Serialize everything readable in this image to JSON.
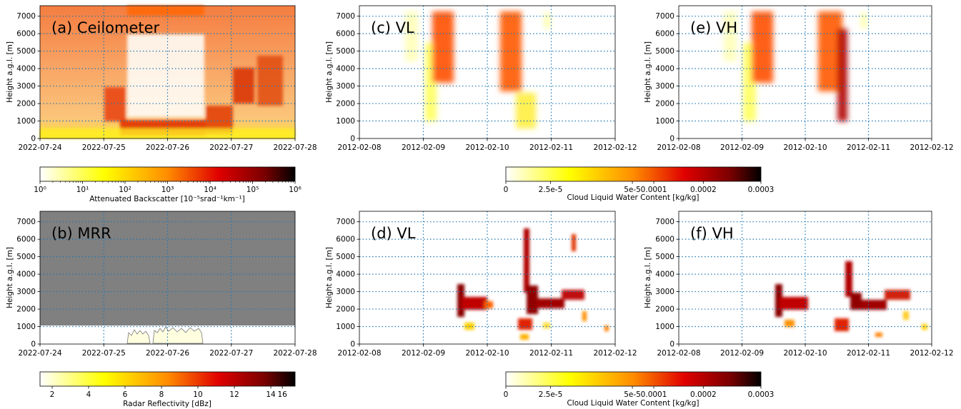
{
  "figure": {
    "colorbar_top_left": {
      "label": "Attenuated Backscatter [10⁻⁵srad⁻¹km⁻¹]",
      "ticks": [
        "10⁰",
        "10¹",
        "10²",
        "10³",
        "10⁴",
        "10⁵",
        "10⁶"
      ],
      "colors": [
        "#ffffff",
        "#ffff00",
        "#ff8c00",
        "#e00000",
        "#7a0000",
        "#000000"
      ]
    },
    "colorbar_top_right": {
      "label": "Cloud Liquid Water Content [kg/kg]",
      "ticks": [
        "0",
        "2.5e-5",
        "5e-5",
        "0.0001",
        "0.0002",
        "0.0003"
      ],
      "colors": [
        "#ffffff",
        "#ffff00",
        "#ff8c00",
        "#e00000",
        "#7a0000",
        "#000000"
      ]
    },
    "colorbar_bottom_left": {
      "label": "Radar Reflectivity [dBz]",
      "ticks": [
        "2",
        "4",
        "6",
        "8",
        "10",
        "12",
        "14",
        "16"
      ],
      "colors": [
        "#ffffff",
        "#ffff00",
        "#ff8c00",
        "#e00000",
        "#7a0000",
        "#000000"
      ]
    },
    "colorbar_bottom_right": {
      "label": "Cloud Liquid Water Content [kg/kg]",
      "ticks": [
        "0",
        "2.5e-5",
        "5e-5",
        "0.0001",
        "0.0002",
        "0.0003"
      ],
      "colors": [
        "#ffffff",
        "#ffff00",
        "#ff8c00",
        "#e00000",
        "#7a0000",
        "#000000"
      ]
    }
  },
  "chart_data": [
    {
      "type": "heatmap",
      "title": "(a) Ceilometer",
      "ylabel": "Height a.g.l. [m]",
      "xlabel": "",
      "x_ticks": [
        "2022-07-24",
        "2022-07-25",
        "2022-07-26",
        "2022-07-27",
        "2022-07-28"
      ],
      "y_ticks": [
        "0",
        "1000",
        "2000",
        "3000",
        "4000",
        "5000",
        "6000",
        "7000"
      ],
      "xlim": [
        "2022-07-24",
        "2022-07-28"
      ],
      "ylim": [
        0,
        7600
      ],
      "grid": true,
      "background": "#f58a45",
      "features": [
        {
          "from": "2022-07-24",
          "to": "2022-07-28",
          "bottom": 0,
          "top": 600,
          "value": "yellow"
        },
        {
          "from": "2022-07-25.4",
          "to": "2022-07-26.6",
          "bottom": 1000,
          "top": 6000,
          "value": "white"
        },
        {
          "from": "2022-07-25.4",
          "to": "2022-07-26.6",
          "bottom": 7200,
          "top": 7600,
          "value": "red"
        },
        {
          "from": "2022-07-25.0",
          "to": "2022-07-25.3",
          "bottom": 900,
          "top": 3000,
          "value": "red"
        },
        {
          "from": "2022-07-25.3",
          "to": "2022-07-26.6",
          "bottom": 200,
          "top": 1200,
          "value": "red"
        },
        {
          "from": "2022-07-26.6",
          "to": "2022-07-27.0",
          "bottom": 200,
          "top": 2000,
          "value": "red"
        },
        {
          "from": "2022-07-27.0",
          "to": "2022-07-27.4",
          "bottom": 2200,
          "top": 4200,
          "value": "red"
        },
        {
          "from": "2022-07-27.4",
          "to": "2022-07-27.8",
          "bottom": 2000,
          "top": 4800,
          "value": "red"
        }
      ]
    },
    {
      "type": "heatmap",
      "title": "(b) MRR",
      "ylabel": "Height a.g.l. [m]",
      "xlabel": "",
      "x_ticks": [
        "2022-07-24",
        "2022-07-25",
        "2022-07-26",
        "2022-07-27",
        "2022-07-28"
      ],
      "y_ticks": [
        "0",
        "1000",
        "2000",
        "3000",
        "4000",
        "5000",
        "6000",
        "7000"
      ],
      "xlim": [
        "2022-07-24",
        "2022-07-28"
      ],
      "ylim": [
        0,
        7600
      ],
      "grid": true,
      "masked_above": 1050,
      "masked_color": "#808080",
      "features": [
        {
          "from": "2022-07-25.35",
          "to": "2022-07-25.6",
          "bottom": 0,
          "top": 800,
          "value": "light-yellow"
        },
        {
          "from": "2022-07-25.8",
          "to": "2022-07-26.55",
          "bottom": 0,
          "top": 900,
          "value": "light-yellow"
        }
      ]
    },
    {
      "type": "heatmap",
      "title": "(c) VL",
      "ylabel": "Height a.g.l. [m]",
      "xlabel": "",
      "x_ticks": [
        "2012-02-08",
        "2012-02-09",
        "2012-02-10",
        "2012-02-11",
        "2012-02-12"
      ],
      "y_ticks": [
        "0",
        "1000",
        "2000",
        "3000",
        "4000",
        "5000",
        "6000",
        "7000"
      ],
      "xlim": [
        "2012-02-08",
        "2012-02-12"
      ],
      "ylim": [
        0,
        7600
      ],
      "grid": true,
      "features": [
        {
          "from": "2012-02-08.8",
          "to": "2012-02-09.0",
          "bottom": 4500,
          "top": 7500,
          "value": "pale-yellow"
        },
        {
          "from": "2012-02-09.1",
          "to": "2012-02-09.25",
          "bottom": 1500,
          "top": 5500,
          "value": "yellow"
        },
        {
          "from": "2012-02-09.2",
          "to": "2012-02-09.5",
          "bottom": 3000,
          "top": 7300,
          "value": "orange-red"
        },
        {
          "from": "2012-02-10.2",
          "to": "2012-02-10.55",
          "bottom": 2500,
          "top": 7300,
          "value": "orange-red"
        },
        {
          "from": "2012-02-10.4",
          "to": "2012-02-10.7",
          "bottom": 300,
          "top": 2200,
          "value": "yellow"
        },
        {
          "from": "2012-02-10.9",
          "to": "2012-02-11.0",
          "bottom": 6200,
          "top": 7300,
          "value": "pale-yellow"
        }
      ]
    },
    {
      "type": "heatmap",
      "title": "(d) VL",
      "ylabel": "Height a.g.l. [m]",
      "xlabel": "",
      "x_ticks": [
        "2012-02-08",
        "2012-02-09",
        "2012-02-10",
        "2012-02-11",
        "2012-02-12"
      ],
      "y_ticks": [
        "0",
        "1000",
        "2000",
        "3000",
        "4000",
        "5000",
        "6000",
        "7000"
      ],
      "xlim": [
        "2012-02-08",
        "2012-02-12"
      ],
      "ylim": [
        0,
        7600
      ],
      "grid": true,
      "features": [
        {
          "from": "2012-02-09.5",
          "to": "2012-02-09.65",
          "bottom": 1500,
          "top": 3500,
          "value": "dark-red"
        },
        {
          "from": "2012-02-09.6",
          "to": "2012-02-10.1",
          "bottom": 1900,
          "top": 2700,
          "value": "dark-red"
        },
        {
          "from": "2012-02-10.55",
          "to": "2012-02-10.75",
          "bottom": 2500,
          "top": 7000,
          "value": "dark-red"
        },
        {
          "from": "2012-02-10.7",
          "to": "2012-02-11.4",
          "bottom": 2000,
          "top": 3000,
          "value": "dark-red"
        },
        {
          "from": "2012-02-11.3",
          "to": "2012-02-11.35",
          "bottom": 5300,
          "top": 6200,
          "value": "red"
        },
        {
          "from": "2012-02-09.6",
          "to": "2012-02-11.8",
          "bottom": 200,
          "top": 1500,
          "value": "scattered"
        }
      ]
    },
    {
      "type": "heatmap",
      "title": "(e) VH",
      "ylabel": "Height a.g.l. [m]",
      "xlabel": "",
      "x_ticks": [
        "2012-02-08",
        "2012-02-09",
        "2012-02-10",
        "2012-02-11",
        "2012-02-12"
      ],
      "y_ticks": [
        "0",
        "1000",
        "2000",
        "3000",
        "4000",
        "5000",
        "6000",
        "7000"
      ],
      "xlim": [
        "2012-02-08",
        "2012-02-12"
      ],
      "ylim": [
        0,
        7600
      ],
      "grid": true,
      "features": [
        {
          "from": "2012-02-08.75",
          "to": "2012-02-08.95",
          "bottom": 4500,
          "top": 7500,
          "value": "pale-yellow"
        },
        {
          "from": "2012-02-09.0",
          "to": "2012-02-09.25",
          "bottom": 1500,
          "top": 5500,
          "value": "yellow"
        },
        {
          "from": "2012-02-09.2",
          "to": "2012-02-09.5",
          "bottom": 3000,
          "top": 7300,
          "value": "orange-red"
        },
        {
          "from": "2012-02-10.2",
          "to": "2012-02-10.6",
          "bottom": 2500,
          "top": 7300,
          "value": "orange-red"
        },
        {
          "from": "2012-02-10.5",
          "to": "2012-02-10.65",
          "bottom": 1200,
          "top": 6500,
          "value": "dark-red"
        },
        {
          "from": "2012-02-10.85",
          "to": "2012-02-10.95",
          "bottom": 6200,
          "top": 7300,
          "value": "pale-yellow"
        }
      ]
    },
    {
      "type": "heatmap",
      "title": "(f) VH",
      "ylabel": "Height a.g.l. [m]",
      "xlabel": "",
      "x_ticks": [
        "2012-02-08",
        "2012-02-09",
        "2012-02-10",
        "2012-02-11",
        "2012-02-12"
      ],
      "y_ticks": [
        "0",
        "1000",
        "2000",
        "3000",
        "4000",
        "5000",
        "6000",
        "7000"
      ],
      "xlim": [
        "2012-02-08",
        "2012-02-12"
      ],
      "ylim": [
        0,
        7600
      ],
      "grid": true,
      "features": [
        {
          "from": "2012-02-09.5",
          "to": "2012-02-09.65",
          "bottom": 1500,
          "top": 3500,
          "value": "dark-red"
        },
        {
          "from": "2012-02-09.6",
          "to": "2012-02-10.1",
          "bottom": 1900,
          "top": 2700,
          "value": "dark-red"
        },
        {
          "from": "2012-02-10.6",
          "to": "2012-02-10.8",
          "bottom": 2500,
          "top": 4800,
          "value": "dark-red"
        },
        {
          "from": "2012-02-10.7",
          "to": "2012-02-11.6",
          "bottom": 2000,
          "top": 3000,
          "value": "dark-red"
        },
        {
          "from": "2012-02-09.6",
          "to": "2012-02-11.9",
          "bottom": 200,
          "top": 1500,
          "value": "scattered"
        }
      ]
    }
  ]
}
